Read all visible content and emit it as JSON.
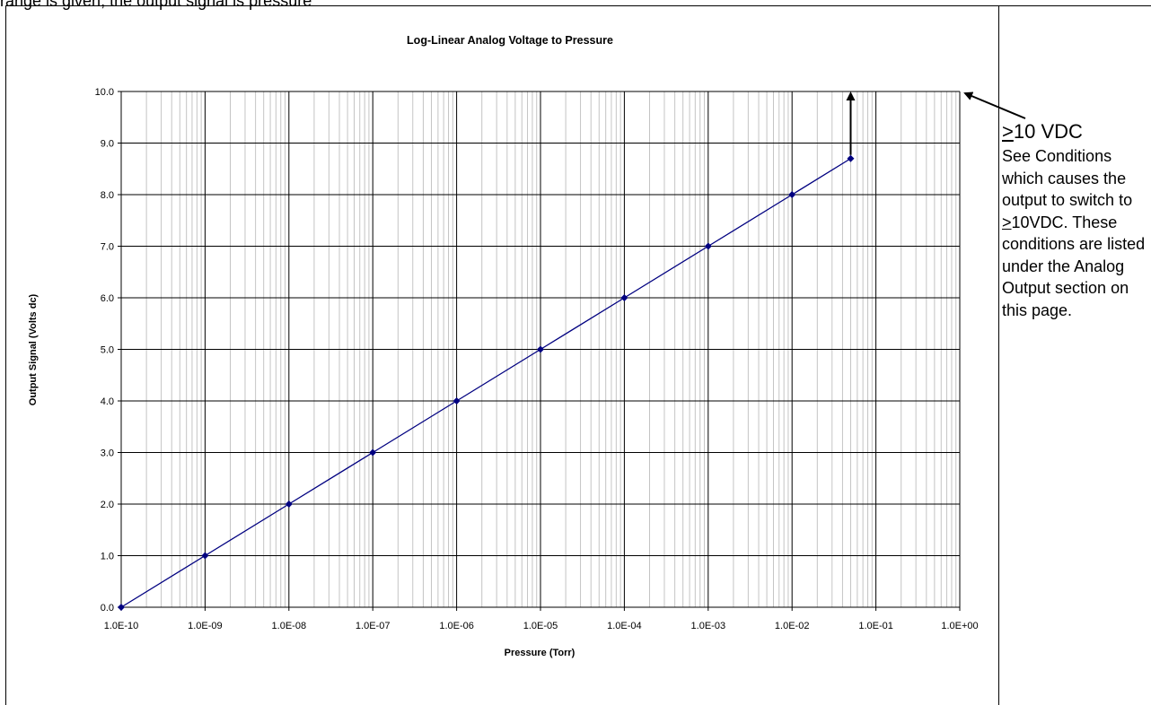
{
  "page_fragment": "range is given, the output signal is pressure",
  "chart_data": {
    "type": "line",
    "title": "Log-Linear Analog Voltage to Pressure",
    "xlabel": "Pressure (Torr)",
    "ylabel": "Output Signal (Volts dc)",
    "xscale": "log",
    "xlim": [
      1e-10,
      1
    ],
    "ylim": [
      0,
      10
    ],
    "x_tick_labels": [
      "1.0E-10",
      "1.0E-09",
      "1.0E-08",
      "1.0E-07",
      "1.0E-06",
      "1.0E-05",
      "1.0E-04",
      "1.0E-03",
      "1.0E-02",
      "1.0E-01",
      "1.0E+00"
    ],
    "y_tick_labels": [
      "0.0",
      "1.0",
      "2.0",
      "3.0",
      "4.0",
      "5.0",
      "6.0",
      "7.0",
      "8.0",
      "9.0",
      "10.0"
    ],
    "grid": true,
    "series": [
      {
        "x": [
          1e-10,
          1e-09,
          1e-08,
          1e-07,
          1e-06,
          1e-05,
          0.0001,
          0.001,
          0.01,
          0.05
        ],
        "y": [
          0,
          1,
          2,
          3,
          4,
          5,
          6,
          7,
          8,
          8.7
        ],
        "color": "#000080"
      }
    ],
    "annotation": {
      "arrow_from": [
        0.05,
        8.7
      ],
      "arrow_to": [
        0.05,
        10
      ]
    }
  },
  "note": {
    "head_symbol": ">",
    "head_rest": "10 VDC",
    "line1": "See Conditions which causes the output to switch to",
    "symbol2": ">",
    "line2_rest": "10VDC.",
    "line3": "These conditions are listed under the Analog Output section on this page."
  }
}
